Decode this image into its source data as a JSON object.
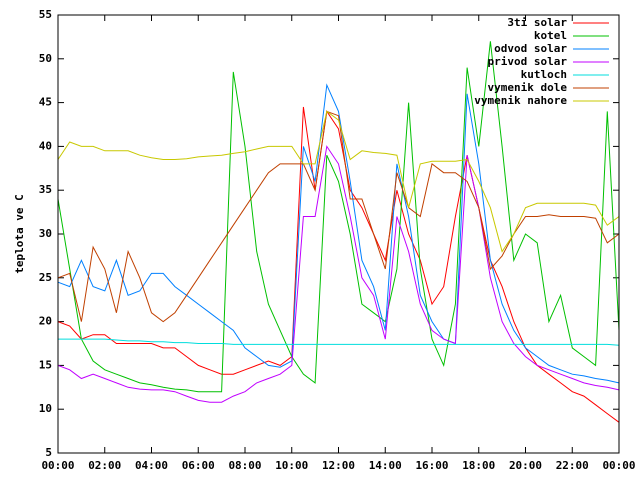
{
  "chart_data": {
    "type": "line",
    "ylabel": "teplota ve C",
    "x": [
      0,
      0.5,
      1,
      1.5,
      2,
      2.5,
      3,
      3.5,
      4,
      4.5,
      5,
      5.5,
      6,
      6.5,
      7,
      7.5,
      8,
      8.5,
      9,
      9.5,
      10,
      10.5,
      11,
      11.5,
      12,
      12.5,
      13,
      13.5,
      14,
      14.5,
      15,
      15.5,
      16,
      16.5,
      17,
      17.5,
      18,
      18.5,
      19,
      19.5,
      20,
      20.5,
      21,
      21.5,
      22,
      22.5,
      23,
      23.5,
      24
    ],
    "xlim": [
      0,
      24
    ],
    "xticks": [
      {
        "value": 0,
        "label": "00:00"
      },
      {
        "value": 2,
        "label": "02:00"
      },
      {
        "value": 4,
        "label": "04:00"
      },
      {
        "value": 6,
        "label": "06:00"
      },
      {
        "value": 8,
        "label": "08:00"
      },
      {
        "value": 10,
        "label": "10:00"
      },
      {
        "value": 12,
        "label": "12:00"
      },
      {
        "value": 14,
        "label": "14:00"
      },
      {
        "value": 16,
        "label": "16:00"
      },
      {
        "value": 18,
        "label": "18:00"
      },
      {
        "value": 20,
        "label": "20:00"
      },
      {
        "value": 22,
        "label": "22:00"
      },
      {
        "value": 24,
        "label": "00:00"
      }
    ],
    "ylim": [
      5,
      55
    ],
    "yticks": [
      5,
      10,
      15,
      20,
      25,
      30,
      35,
      40,
      45,
      50,
      55
    ],
    "grid": false,
    "legend": "top-right",
    "series": [
      {
        "name": "3ti solar",
        "color": "#ff0000",
        "values": [
          20,
          19.5,
          18,
          18.5,
          18.5,
          17.5,
          17.5,
          17.5,
          17.5,
          17,
          17,
          16,
          15,
          14.5,
          14,
          14,
          14.5,
          15,
          15.5,
          15,
          16,
          44.5,
          35,
          44,
          42,
          35,
          33,
          30,
          27,
          35,
          30,
          27,
          22,
          24,
          32,
          39,
          33,
          27,
          24,
          20,
          17,
          15,
          14,
          13,
          12,
          11.5,
          10.5,
          9.5,
          8.5
        ]
      },
      {
        "name": "kotel",
        "color": "#00c000",
        "values": [
          34,
          26,
          18,
          15.5,
          14.5,
          14,
          13.5,
          13,
          12.8,
          12.5,
          12.3,
          12.2,
          12,
          12,
          12,
          48.5,
          40,
          28,
          22,
          19,
          16,
          14,
          13,
          39,
          36,
          30,
          22,
          21,
          20,
          26,
          45,
          26,
          18,
          15,
          22,
          49,
          40,
          52,
          40,
          27,
          30,
          29,
          20,
          23,
          17,
          16,
          15,
          44,
          19
        ]
      },
      {
        "name": "odvod solar",
        "color": "#0080ff",
        "values": [
          24.5,
          24,
          27,
          24,
          23.5,
          27,
          23,
          23.5,
          25.5,
          25.5,
          24,
          23,
          22,
          21,
          20,
          19,
          17,
          16,
          15,
          14.8,
          15.5,
          40,
          36,
          47,
          44,
          36,
          27,
          24,
          19,
          38,
          32,
          23,
          20,
          18,
          17.5,
          46,
          38,
          27,
          22,
          19,
          17,
          16,
          15,
          14.5,
          14,
          13.8,
          13.5,
          13.3,
          13
        ]
      },
      {
        "name": "privod solar",
        "color": "#c000ff",
        "values": [
          15,
          14.5,
          13.5,
          14,
          13.5,
          13,
          12.5,
          12.3,
          12.2,
          12.2,
          12,
          11.5,
          11,
          10.8,
          10.8,
          11.5,
          12,
          13,
          13.5,
          14,
          15,
          32,
          32,
          40,
          38,
          32,
          25,
          23,
          18,
          32,
          28,
          22,
          19,
          18,
          17.5,
          39,
          33,
          25,
          20,
          17.5,
          16,
          15,
          14.5,
          14,
          13.5,
          13,
          12.7,
          12.5,
          12.2
        ]
      },
      {
        "name": "kutloch",
        "color": "#00dddd",
        "values": [
          18,
          18,
          18,
          18,
          18,
          17.9,
          17.8,
          17.8,
          17.7,
          17.7,
          17.6,
          17.6,
          17.5,
          17.5,
          17.5,
          17.4,
          17.4,
          17.4,
          17.4,
          17.4,
          17.4,
          17.4,
          17.4,
          17.4,
          17.4,
          17.4,
          17.4,
          17.4,
          17.4,
          17.4,
          17.4,
          17.4,
          17.4,
          17.4,
          17.4,
          17.4,
          17.4,
          17.4,
          17.4,
          17.4,
          17.4,
          17.4,
          17.4,
          17.4,
          17.4,
          17.4,
          17.4,
          17.4,
          17.3
        ]
      },
      {
        "name": "vymenik dole",
        "color": "#c04000",
        "values": [
          25,
          25.5,
          20,
          28.5,
          26,
          21,
          28,
          25,
          21,
          20,
          21,
          23,
          25,
          27,
          29,
          31,
          33,
          35,
          37,
          38,
          38,
          38,
          35,
          44,
          43.5,
          34,
          34,
          30,
          26,
          37,
          33,
          32,
          38,
          37,
          37,
          36,
          33,
          26,
          27.5,
          30,
          32,
          32,
          32.2,
          32,
          32,
          32,
          31.8,
          29,
          30
        ]
      },
      {
        "name": "vymenik nahore",
        "color": "#c8c800",
        "values": [
          38.5,
          40.5,
          40,
          40,
          39.5,
          39.5,
          39.5,
          39,
          38.7,
          38.5,
          38.5,
          38.6,
          38.8,
          38.9,
          39,
          39.2,
          39.4,
          39.7,
          40,
          40,
          40,
          38,
          38,
          44,
          43,
          38.5,
          39.5,
          39.3,
          39.2,
          39,
          33,
          38,
          38.3,
          38.3,
          38.3,
          38.5,
          36,
          33,
          28,
          30,
          33,
          33.5,
          33.5,
          33.5,
          33.5,
          33.5,
          33.3,
          31,
          32
        ]
      }
    ]
  }
}
